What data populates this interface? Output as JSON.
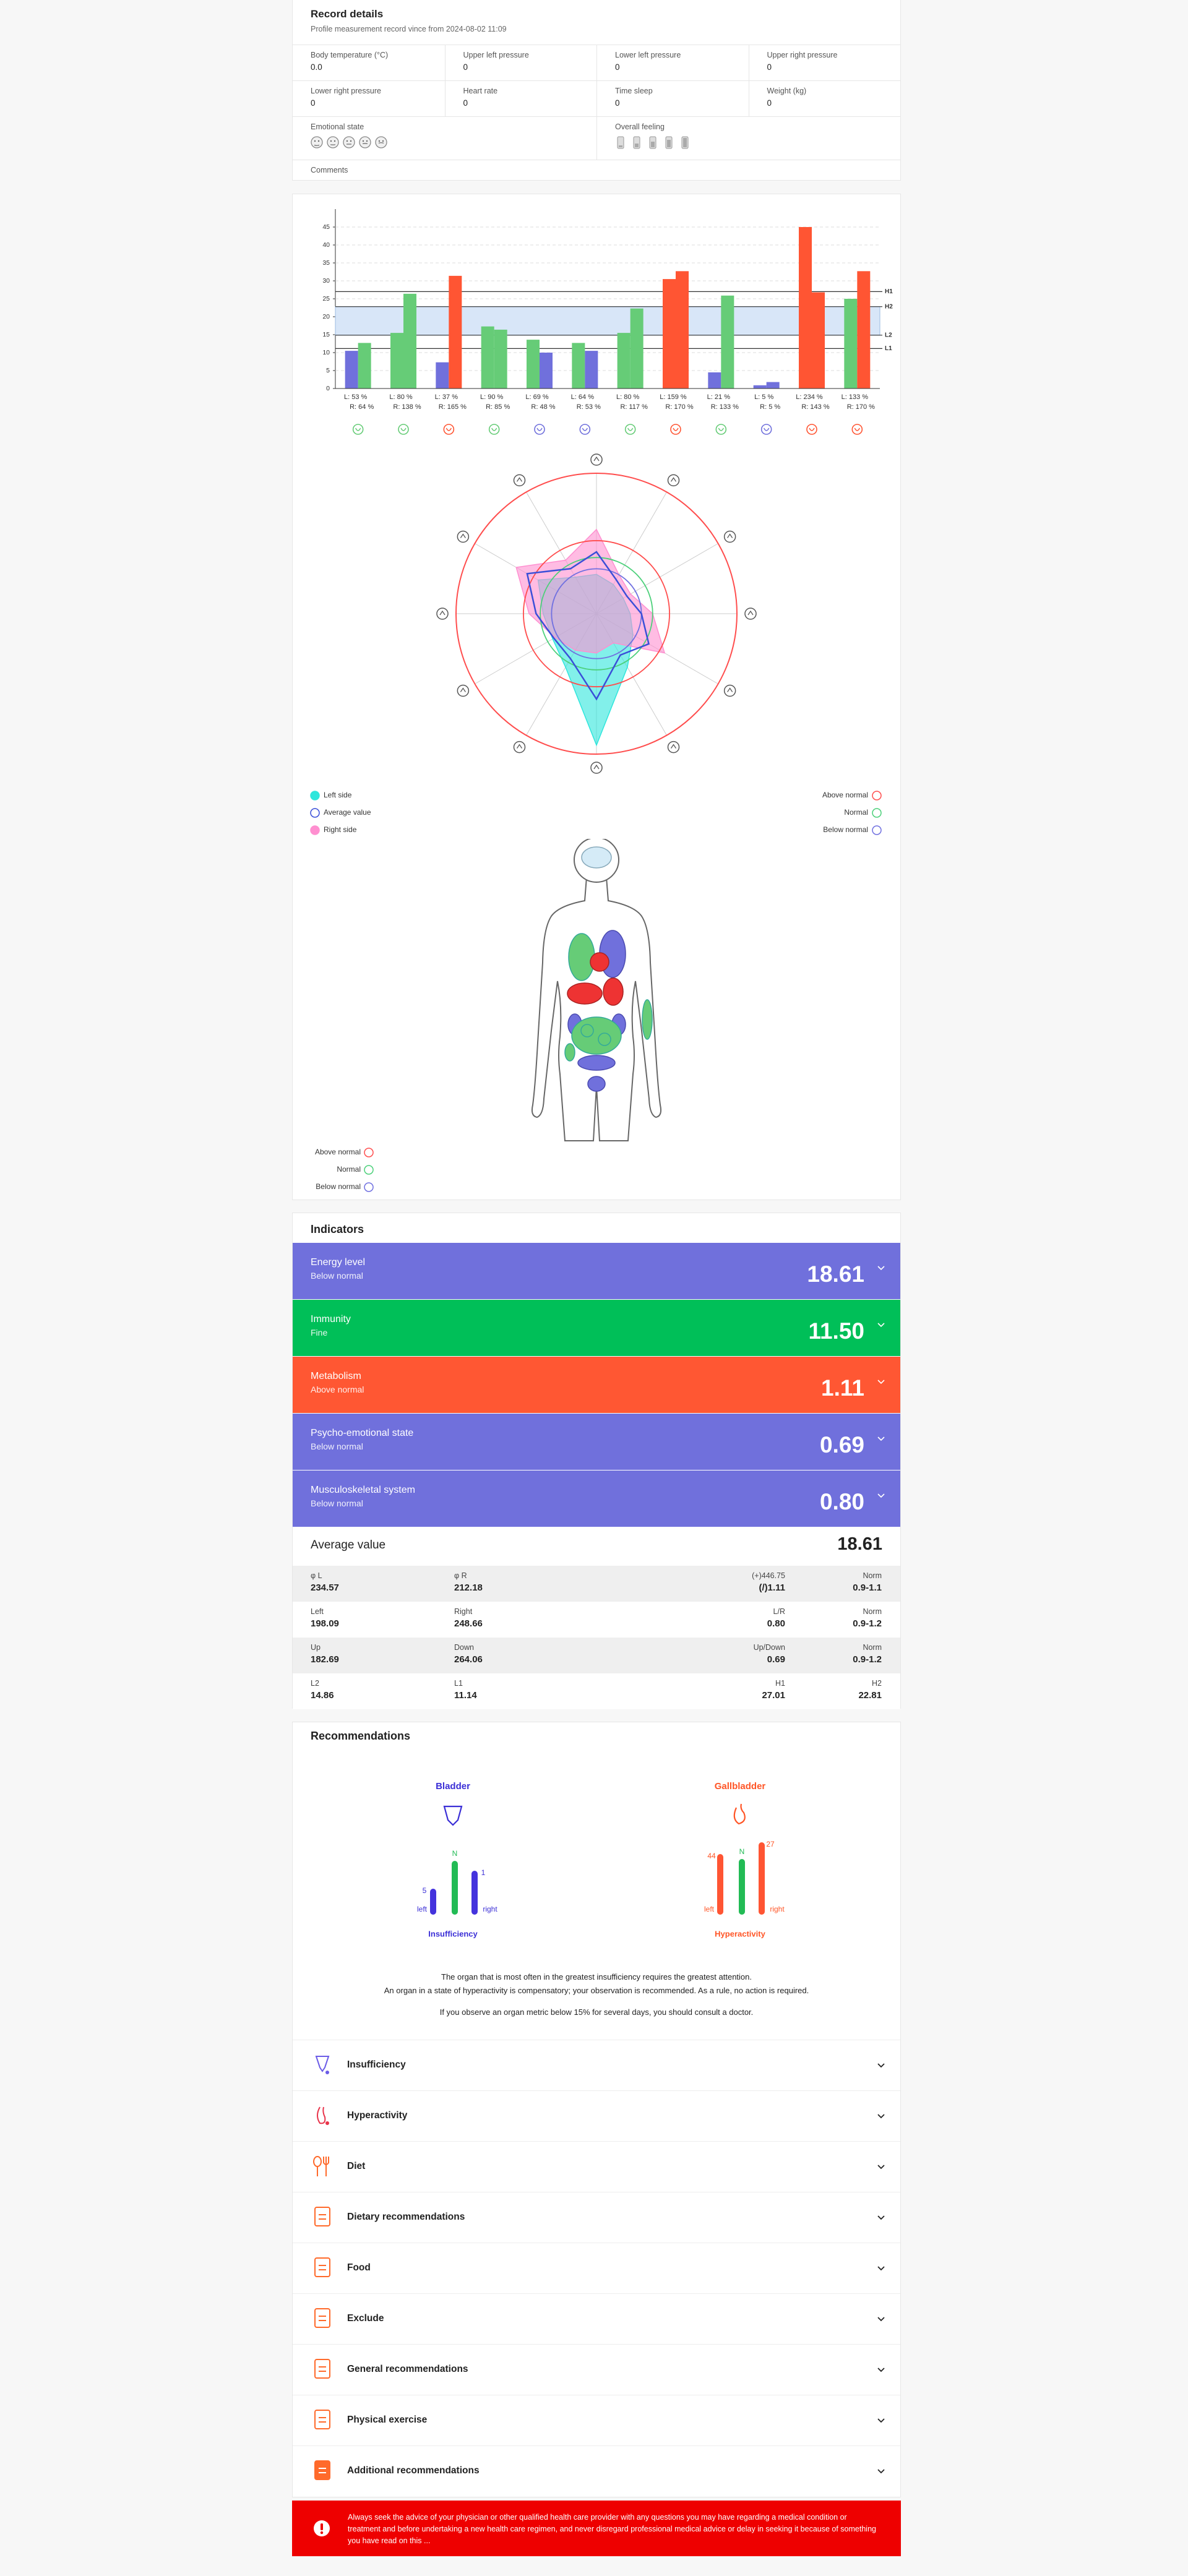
{
  "record": {
    "title": "Record details",
    "subtitle": "Profile measurement record vince from 2024-08-02 11:09",
    "fields": [
      {
        "label": "Body temperature (°C)",
        "value": "0.0"
      },
      {
        "label": "Upper left pressure",
        "value": "0"
      },
      {
        "label": "Lower left pressure",
        "value": "0"
      },
      {
        "label": "Upper right pressure",
        "value": "0"
      },
      {
        "label": "Lower right pressure",
        "value": "0"
      },
      {
        "label": "Heart rate",
        "value": "0"
      },
      {
        "label": "Time sleep",
        "value": "0"
      },
      {
        "label": "Weight (kg)",
        "value": "0"
      }
    ],
    "emotional_state": "Emotional state",
    "overall_feeling": "Overall feeling",
    "comments": "Comments"
  },
  "chart_data": [
    {
      "type": "bar",
      "categories": [
        "L: 53 %",
        "L: 80 %",
        "L: 37 %",
        "L: 90 %",
        "L: 69 %",
        "L: 64 %",
        "L: 80 %",
        "L: 159 %",
        "L: 21 %",
        "L: 5 %",
        "L: 234 %",
        "L: 133 %"
      ],
      "categories_right": [
        "R: 64 %",
        "R: 138 %",
        "R: 165 %",
        "R: 85 %",
        "R: 48 %",
        "R: 53 %",
        "R: 117 %",
        "R: 170 %",
        "R: 133 %",
        "R: 5 %",
        "R: 143 %",
        "R: 170 %"
      ],
      "series": [
        {
          "values": [
            10.5,
            15.5,
            7.3,
            17.3,
            13.6,
            12.7,
            15.5,
            30.5,
            4.5,
            0.9,
            45,
            25
          ],
          "colors": [
            "#7070dc",
            "#66cc77",
            "#7070dc",
            "#66cc77",
            "#66cc77",
            "#66cc77",
            "#66cc77",
            "#ff5533",
            "#7070dc",
            "#7070dc",
            "#ff5533",
            "#66cc77"
          ]
        },
        {
          "values": [
            12.7,
            26.4,
            31.4,
            16.4,
            10,
            10.5,
            22.3,
            32.7,
            25.9,
            1.8,
            26.8,
            32.7
          ],
          "colors": [
            "#66cc77",
            "#66cc77",
            "#ff5533",
            "#66cc77",
            "#7070dc",
            "#7070dc",
            "#66cc77",
            "#ff5533",
            "#66cc77",
            "#7070dc",
            "#ff5533",
            "#ff5533"
          ]
        }
      ],
      "ylim": [
        0,
        50
      ],
      "yticks": [
        0,
        5,
        10,
        15,
        20,
        25,
        30,
        35,
        40,
        45
      ],
      "grid": true,
      "reference_lines": [
        {
          "label": "H1",
          "value": 27.01
        },
        {
          "label": "H2",
          "value": 22.81
        },
        {
          "label": "L2",
          "value": 14.86
        },
        {
          "label": "L1",
          "value": 11.14
        }
      ],
      "band_color": "#d8e6f8"
    },
    {
      "type": "radar",
      "rlim": [
        0,
        250
      ],
      "outer_color": "#ff4d4d",
      "rings": [
        {
          "value": 130,
          "color": "#ff4d4d"
        },
        {
          "value": 100,
          "color": "#4cd07a"
        },
        {
          "value": 80,
          "color": "#7070e0"
        }
      ],
      "series": [
        {
          "name": "Left side",
          "color": "#2ee6dc",
          "fill": true,
          "values": [
            70,
            60,
            55,
            60,
            75,
            110,
            234,
            110,
            90,
            95,
            120,
            75
          ]
        },
        {
          "name": "Average value",
          "color": "#3a4fd8",
          "fill": false,
          "values": [
            110,
            70,
            62.5,
            80,
            107.5,
            85,
            152,
            92.5,
            87.5,
            107.5,
            142.5,
            92.5
          ]
        },
        {
          "name": "Right side",
          "color": "#ff8fd0",
          "fill": true,
          "values": [
            150,
            80,
            70,
            100,
            140,
            60,
            70,
            75,
            85,
            120,
            165,
            110
          ]
        }
      ],
      "status_legend": [
        {
          "name": "Above normal",
          "color": "#ff4d4d"
        },
        {
          "name": "Normal",
          "color": "#4cd07a"
        },
        {
          "name": "Below normal",
          "color": "#7070e0"
        }
      ]
    }
  ],
  "body_legend": [
    {
      "name": "Above normal",
      "color": "#ff4d4d"
    },
    {
      "name": "Normal",
      "color": "#4cd07a"
    },
    {
      "name": "Below normal",
      "color": "#7070e0"
    }
  ],
  "indicators": {
    "title": "Indicators",
    "items": [
      {
        "name": "Energy level",
        "status": "Below normal",
        "value": "18.61",
        "color": "#7070dc"
      },
      {
        "name": "Immunity",
        "status": "Fine",
        "value": "11.50",
        "color": "#00bf58"
      },
      {
        "name": "Metabolism",
        "status": "Above normal",
        "value": "1.11",
        "color": "#ff5733"
      },
      {
        "name": "Psycho-emotional state",
        "status": "Below normal",
        "value": "0.69",
        "color": "#7070dc"
      },
      {
        "name": "Musculoskeletal system",
        "status": "Below normal",
        "value": "0.80",
        "color": "#7070dc"
      }
    ],
    "average": {
      "label": "Average value",
      "value": "18.61"
    },
    "stats": [
      [
        [
          "φ L",
          "234.57"
        ],
        [
          "φ R",
          "212.18"
        ],
        [
          "(+)446.75",
          "(/)1.11"
        ],
        [
          "Norm",
          "0.9-1.1"
        ]
      ],
      [
        [
          "Left",
          "198.09"
        ],
        [
          "Right",
          "248.66"
        ],
        [
          "L/R",
          "0.80"
        ],
        [
          "Norm",
          "0.9-1.2"
        ]
      ],
      [
        [
          "Up",
          "182.69"
        ],
        [
          "Down",
          "264.06"
        ],
        [
          "Up/Down",
          "0.69"
        ],
        [
          "Norm",
          "0.9-1.2"
        ]
      ],
      [
        [
          "L2",
          "14.86"
        ],
        [
          "L1",
          "11.14"
        ],
        [
          "H1",
          "27.01"
        ],
        [
          "H2",
          "22.81"
        ]
      ]
    ]
  },
  "recommendations": {
    "title": "Recommendations",
    "organs": [
      {
        "name": "Bladder",
        "status": "Insufficiency",
        "left_value": "5",
        "right_value": "1",
        "left": "left",
        "n": "N",
        "right": "right"
      },
      {
        "name": "Gallbladder",
        "status": "Hyperactivity",
        "left_value": "44",
        "right_value": "27",
        "left": "left",
        "n": "N",
        "right": "right"
      }
    ],
    "notes": [
      "The organ that is most often in the greatest insufficiency requires the greatest attention.",
      "An organ in a state of hyperactivity is compensatory; your observation is recommended. As a rule, no action is required.",
      "If you observe an organ metric below 15% for several days, you should consult a doctor."
    ],
    "sections": [
      "Insufficiency",
      "Hyperactivity",
      "Diet",
      "Dietary recommendations",
      "Food",
      "Exclude",
      "General recommendations",
      "Physical exercise",
      "Additional recommendations"
    ]
  },
  "disclaimer": "Always seek the advice of your physician or other qualified health care provider with any questions you may have regarding a medical condition or treatment and before undertaking a new health care regimen, and never disregard professional medical advice or delay in seeking it because of something you have read on this ..."
}
